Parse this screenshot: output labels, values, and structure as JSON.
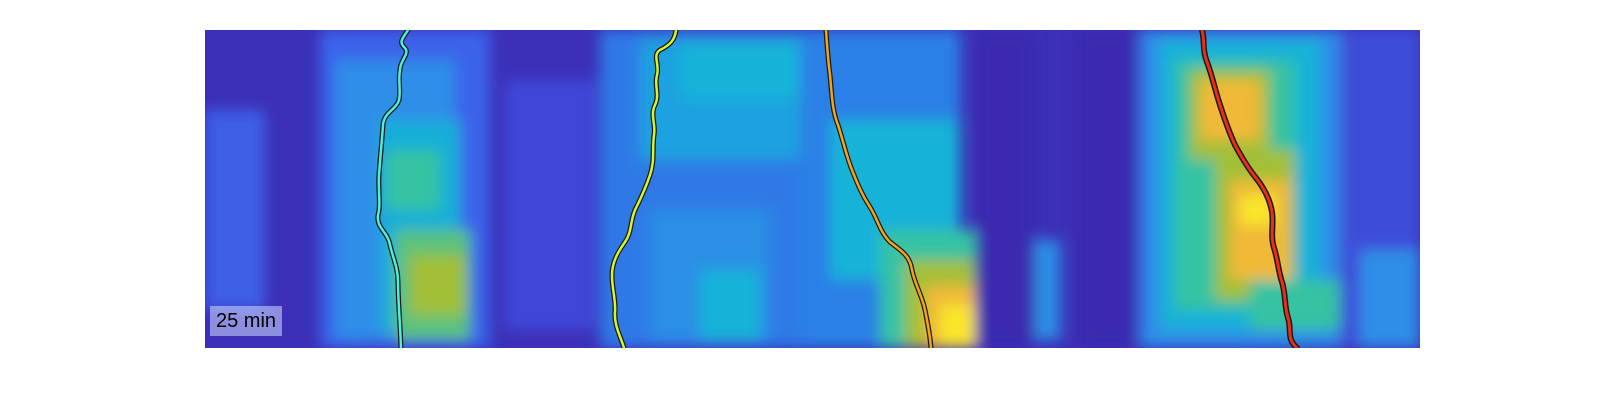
{
  "time_label": "25 min",
  "colormap": [
    "#3e26a8",
    "#4650f0",
    "#2d8ee8",
    "#16b0d8",
    "#35c3a3",
    "#a3bf39",
    "#f0b939",
    "#f9f721"
  ],
  "tracks": [
    {
      "name": "track-cyan",
      "color": "#4ff0d9"
    },
    {
      "name": "track-lime",
      "color": "#d6f52a"
    },
    {
      "name": "track-orange",
      "color": "#f5a317"
    },
    {
      "name": "track-red",
      "color": "#ef2c17"
    }
  ]
}
